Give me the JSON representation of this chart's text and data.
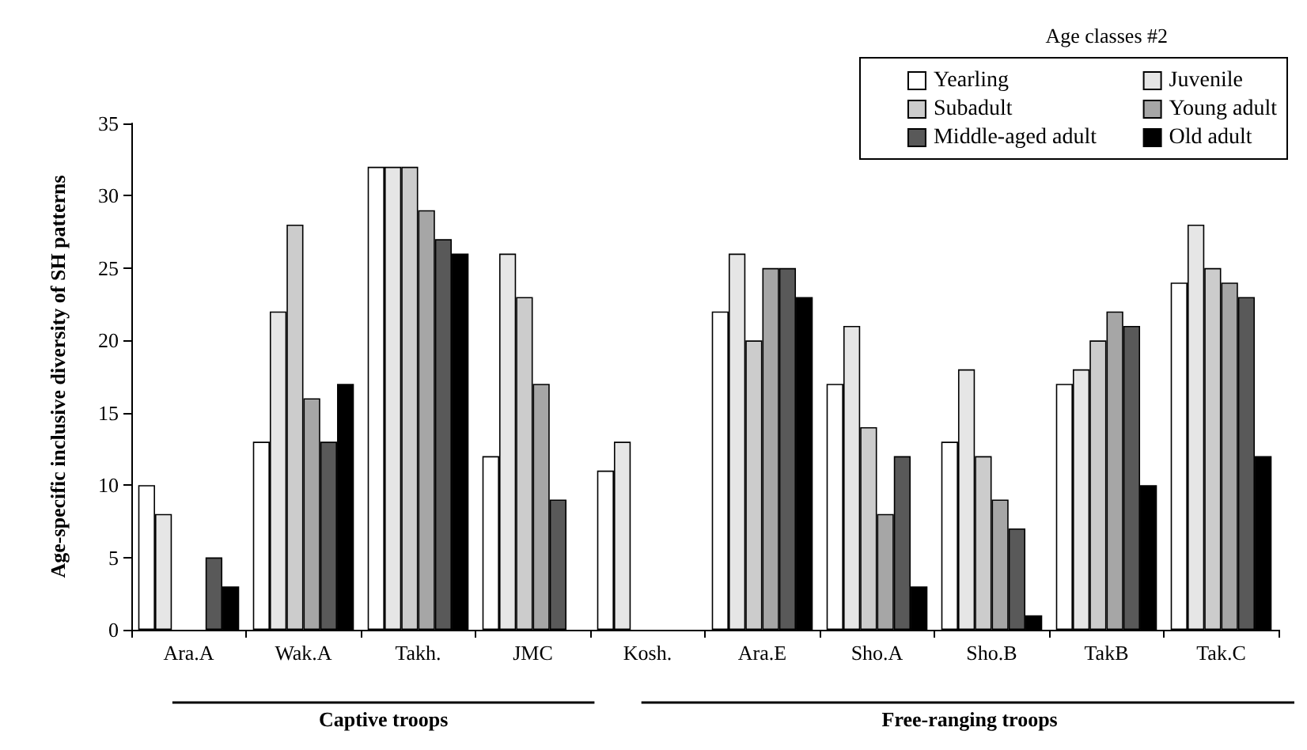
{
  "chart_data": {
    "type": "bar",
    "ylabel": "Age-specific inclusive diversity of SH patterns",
    "legend_title": "Age classes #2",
    "categories": [
      "Ara.A",
      "Wak.A",
      "Takh.",
      "JMC",
      "Kosh.",
      "Ara.E",
      "Sho.A",
      "Sho.B",
      "TakB",
      "Tak.C"
    ],
    "series": [
      {
        "name": "Yearling",
        "color": "#ffffff",
        "values": [
          10,
          13,
          32,
          12,
          11,
          22,
          17,
          13,
          17,
          24
        ]
      },
      {
        "name": "Juvenile",
        "color": "#e6e6e6",
        "values": [
          8,
          22,
          32,
          26,
          13,
          26,
          21,
          18,
          18,
          28
        ]
      },
      {
        "name": "Subadult",
        "color": "#cccccc",
        "values": [
          null,
          28,
          32,
          23,
          null,
          20,
          14,
          12,
          20,
          25
        ]
      },
      {
        "name": "Young adult",
        "color": "#a6a6a6",
        "values": [
          null,
          16,
          29,
          17,
          null,
          25,
          8,
          9,
          22,
          24
        ]
      },
      {
        "name": "Middle-aged adult",
        "color": "#595959",
        "values": [
          5,
          13,
          27,
          9,
          null,
          25,
          12,
          7,
          21,
          23
        ]
      },
      {
        "name": "Old adult",
        "color": "#000000",
        "values": [
          3,
          17,
          26,
          null,
          null,
          23,
          3,
          1,
          10,
          12
        ]
      }
    ],
    "ylim": [
      0,
      35
    ],
    "yticks": [
      0,
      5,
      10,
      15,
      20,
      25,
      30,
      35
    ],
    "grid": false,
    "legend": "top right",
    "annotations": [
      "Captive troops",
      "Free-ranging troops"
    ]
  }
}
